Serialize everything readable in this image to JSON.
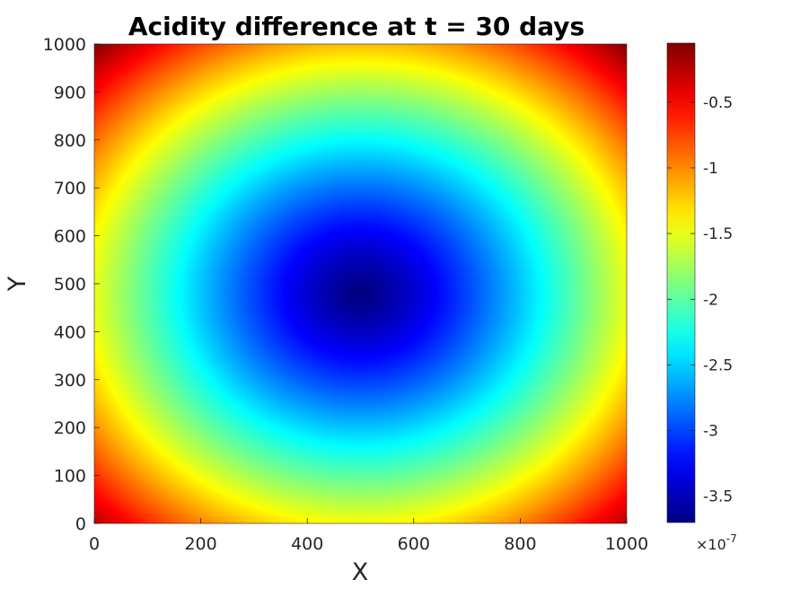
{
  "chart_data": {
    "type": "heatmap",
    "title": "Acidity difference at t = 30 days",
    "xlabel": "X",
    "ylabel": "Y",
    "xlim": [
      0,
      1000
    ],
    "ylim": [
      0,
      1000
    ],
    "xticks": [
      0,
      200,
      400,
      600,
      800,
      1000
    ],
    "yticks": [
      0,
      100,
      200,
      300,
      400,
      500,
      600,
      700,
      800,
      900,
      1000
    ],
    "colormap": "jet",
    "colorbar": {
      "range": [
        -3.7,
        -0.05
      ],
      "ticks": [
        -3.5,
        -3,
        -2.5,
        -2,
        -1.5,
        -1,
        -0.5
      ],
      "tick_labels": [
        "-3.5",
        "-3",
        "-2.5",
        "-2",
        "-1.5",
        "-1",
        "-0.5"
      ],
      "exponent_label": "×10",
      "exponent_power": "-7"
    },
    "field": {
      "description_units": "×1e-7",
      "minimum": {
        "x": 500,
        "y": 480,
        "value": -3.7
      },
      "corner_value": -0.05,
      "approx_contours": [
        {
          "value": -1.5,
          "x_extent": [
            170,
            830
          ],
          "y_extent": [
            170,
            790
          ]
        },
        {
          "value": -2.5,
          "x_extent": [
            290,
            720
          ],
          "y_extent": [
            300,
            670
          ]
        }
      ]
    },
    "grid": false,
    "colorbar_position": "right"
  }
}
